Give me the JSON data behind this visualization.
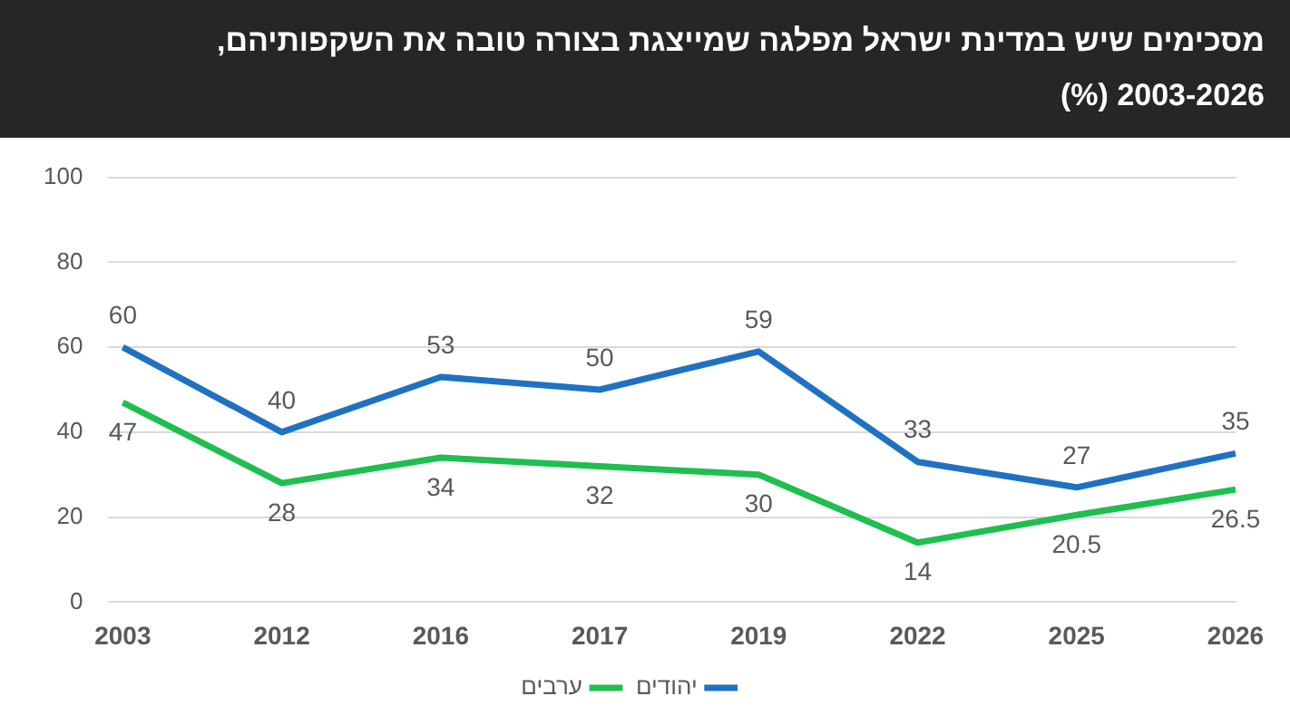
{
  "chart_data": {
    "type": "line",
    "title": "מסכימים שיש במדינת ישראל מפלגה שמייצגת בצורה טובה את השקפותיהם, 2003-2026 (%)",
    "categories": [
      "2003",
      "2012",
      "2016",
      "2017",
      "2019",
      "2022",
      "2025",
      "2026"
    ],
    "series": [
      {
        "name": "יהודים",
        "color": "#1f72c2",
        "values": [
          60,
          40,
          53,
          50,
          59,
          33,
          27,
          35
        ]
      },
      {
        "name": "ערבים",
        "color": "#1fbf4f",
        "values": [
          47,
          28,
          34,
          32,
          30,
          14,
          20.5,
          26.5
        ]
      }
    ],
    "ylim": [
      0,
      100
    ],
    "yticks": [
      0,
      20,
      40,
      60,
      80,
      100
    ],
    "grid": "y",
    "legend": "bottom",
    "data_labels": true,
    "marker": "none",
    "line_style": "solid"
  }
}
